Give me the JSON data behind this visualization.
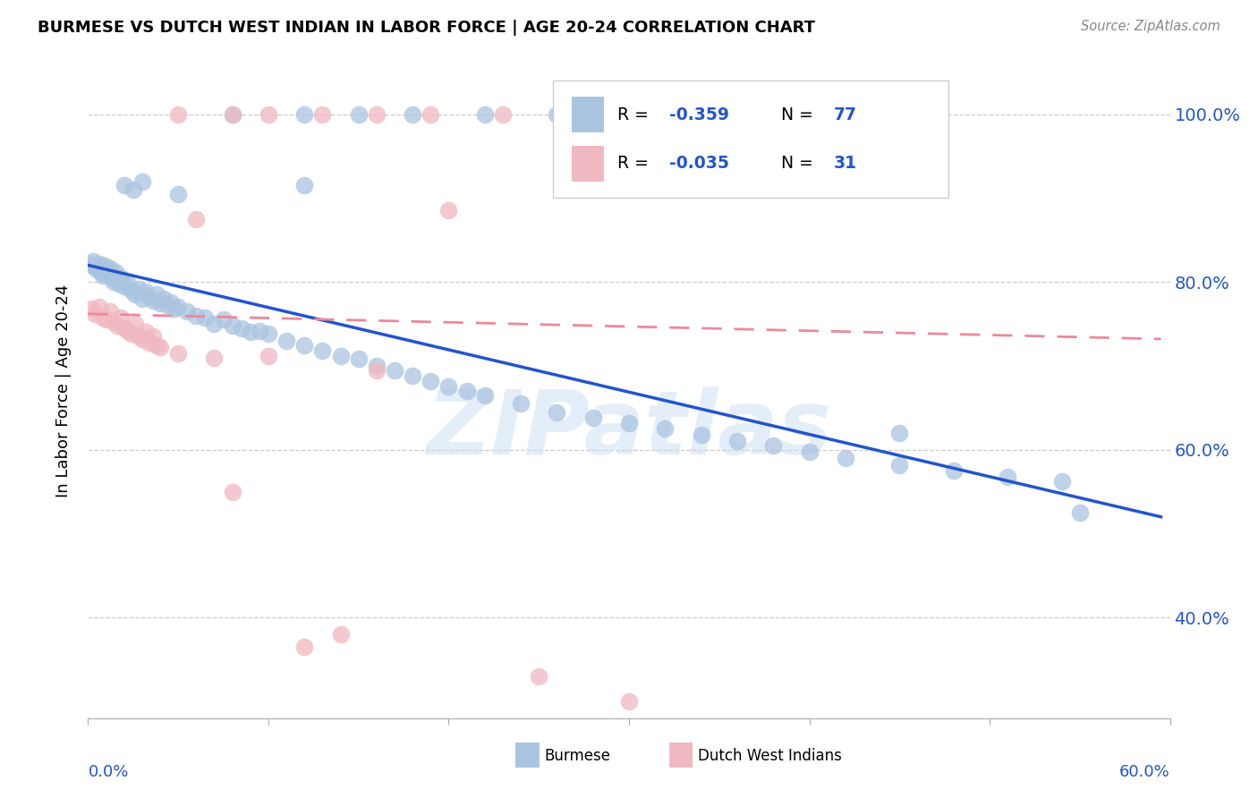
{
  "title": "BURMESE VS DUTCH WEST INDIAN IN LABOR FORCE | AGE 20-24 CORRELATION CHART",
  "source": "Source: ZipAtlas.com",
  "ylabel": "In Labor Force | Age 20-24",
  "x_min": 0.0,
  "x_max": 0.6,
  "y_min": 0.28,
  "y_max": 1.06,
  "y_ticks": [
    0.4,
    0.6,
    0.8,
    1.0
  ],
  "y_tick_labels": [
    "40.0%",
    "60.0%",
    "80.0%",
    "100.0%"
  ],
  "blue_color": "#aac4e0",
  "pink_color": "#f0b8c0",
  "blue_line_color": "#2255cc",
  "pink_line_color": "#ee8899",
  "watermark": "ZIPatlas",
  "blue_line_x": [
    0.0,
    0.595
  ],
  "blue_line_y": [
    0.82,
    0.52
  ],
  "pink_line_x": [
    0.0,
    0.595
  ],
  "pink_line_y": [
    0.762,
    0.732
  ],
  "blue_x": [
    0.002,
    0.003,
    0.004,
    0.005,
    0.006,
    0.007,
    0.008,
    0.009,
    0.01,
    0.011,
    0.012,
    0.013,
    0.014,
    0.015,
    0.016,
    0.017,
    0.018,
    0.019,
    0.02,
    0.022,
    0.024,
    0.026,
    0.028,
    0.03,
    0.032,
    0.034,
    0.036,
    0.038,
    0.04,
    0.042,
    0.044,
    0.046,
    0.048,
    0.05,
    0.055,
    0.06,
    0.065,
    0.07,
    0.075,
    0.08,
    0.085,
    0.09,
    0.095,
    0.1,
    0.11,
    0.12,
    0.13,
    0.14,
    0.15,
    0.16,
    0.17,
    0.18,
    0.19,
    0.2,
    0.21,
    0.22,
    0.24,
    0.26,
    0.28,
    0.3,
    0.32,
    0.34,
    0.36,
    0.38,
    0.4,
    0.42,
    0.45,
    0.48,
    0.51,
    0.54,
    0.03,
    0.025,
    0.02,
    0.05,
    0.12,
    0.45,
    0.55
  ],
  "blue_y": [
    0.82,
    0.825,
    0.818,
    0.815,
    0.822,
    0.812,
    0.808,
    0.819,
    0.814,
    0.81,
    0.816,
    0.805,
    0.8,
    0.812,
    0.806,
    0.798,
    0.805,
    0.8,
    0.795,
    0.798,
    0.79,
    0.785,
    0.792,
    0.78,
    0.788,
    0.782,
    0.778,
    0.785,
    0.775,
    0.78,
    0.772,
    0.776,
    0.768,
    0.77,
    0.765,
    0.76,
    0.758,
    0.75,
    0.755,
    0.748,
    0.745,
    0.74,
    0.742,
    0.738,
    0.73,
    0.725,
    0.718,
    0.712,
    0.708,
    0.7,
    0.695,
    0.688,
    0.682,
    0.675,
    0.67,
    0.665,
    0.655,
    0.645,
    0.638,
    0.632,
    0.625,
    0.618,
    0.61,
    0.605,
    0.598,
    0.59,
    0.582,
    0.575,
    0.568,
    0.562,
    0.92,
    0.91,
    0.915,
    0.905,
    0.915,
    0.62,
    0.525
  ],
  "pink_x": [
    0.002,
    0.004,
    0.006,
    0.008,
    0.01,
    0.012,
    0.014,
    0.016,
    0.018,
    0.02,
    0.022,
    0.024,
    0.026,
    0.028,
    0.03,
    0.032,
    0.034,
    0.036,
    0.038,
    0.04,
    0.05,
    0.06,
    0.07,
    0.08,
    0.1,
    0.12,
    0.14,
    0.16,
    0.2,
    0.25,
    0.3
  ],
  "pink_y": [
    0.768,
    0.762,
    0.77,
    0.758,
    0.755,
    0.765,
    0.752,
    0.748,
    0.758,
    0.745,
    0.742,
    0.738,
    0.75,
    0.735,
    0.732,
    0.74,
    0.728,
    0.735,
    0.725,
    0.722,
    0.715,
    0.875,
    0.71,
    0.55,
    0.712,
    0.365,
    0.38,
    0.695,
    0.885,
    0.33,
    0.3
  ]
}
